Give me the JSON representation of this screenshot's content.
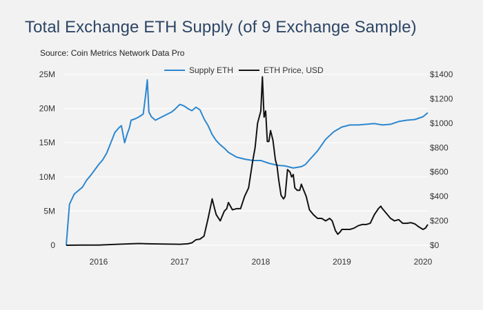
{
  "title": "Total Exchange ETH Supply (of 9 Exchange Sample)",
  "source": "Source: Coin Metrics Network Data Pro",
  "colors": {
    "supply": "#2a86cf",
    "price": "#111111",
    "grid": "#ffffff",
    "background": "#f2f2f2",
    "title": "#2d4565"
  },
  "chart_data": {
    "type": "line",
    "legend_position": "top-center",
    "grid": true,
    "x_ticks": [
      2016,
      2017,
      2018,
      2019,
      2020
    ],
    "xlim": [
      2015.6,
      2020.06
    ],
    "y_left": {
      "ylim": [
        0,
        25000000
      ],
      "ticks": [
        "0",
        "5M",
        "10M",
        "15M",
        "20M",
        "25M"
      ],
      "tick_values": [
        0,
        5000000,
        10000000,
        15000000,
        20000000,
        25000000
      ]
    },
    "y_right": {
      "ylim": [
        0,
        1400
      ],
      "ticks": [
        "$0",
        "$200",
        "$400",
        "$600",
        "$800",
        "$1000",
        "$1200",
        "$1400"
      ],
      "tick_values": [
        0,
        200,
        400,
        600,
        800,
        1000,
        1200,
        1400
      ]
    },
    "series": [
      {
        "name": "Supply ETH",
        "axis": "left",
        "x": [
          2015.6,
          2015.64,
          2015.66,
          2015.7,
          2015.75,
          2015.8,
          2015.85,
          2015.9,
          2015.95,
          2016.0,
          2016.05,
          2016.1,
          2016.15,
          2016.2,
          2016.25,
          2016.28,
          2016.32,
          2016.35,
          2016.38,
          2016.4,
          2016.45,
          2016.5,
          2016.55,
          2016.58,
          2016.6,
          2016.62,
          2016.65,
          2016.7,
          2016.75,
          2016.8,
          2016.85,
          2016.9,
          2016.95,
          2017.0,
          2017.05,
          2017.1,
          2017.15,
          2017.2,
          2017.25,
          2017.3,
          2017.35,
          2017.4,
          2017.45,
          2017.5,
          2017.55,
          2017.6,
          2017.7,
          2017.8,
          2017.9,
          2018.0,
          2018.1,
          2018.2,
          2018.3,
          2018.4,
          2018.5,
          2018.55,
          2018.6,
          2018.7,
          2018.8,
          2018.9,
          2019.0,
          2019.1,
          2019.2,
          2019.3,
          2019.4,
          2019.5,
          2019.6,
          2019.7,
          2019.8,
          2019.9,
          2020.0,
          2020.06
        ],
        "values": [
          0,
          6000000,
          6500000,
          7500000,
          8000000,
          8500000,
          9500000,
          10200000,
          11000000,
          11800000,
          12500000,
          13500000,
          15000000,
          16500000,
          17200000,
          17500000,
          15000000,
          16200000,
          17200000,
          18300000,
          18500000,
          18800000,
          19200000,
          22000000,
          24200000,
          19500000,
          18800000,
          18300000,
          18600000,
          18900000,
          19200000,
          19500000,
          20000000,
          20600000,
          20400000,
          20000000,
          19700000,
          20200000,
          19800000,
          18500000,
          17500000,
          16200000,
          15300000,
          14700000,
          14200000,
          13600000,
          12900000,
          12600000,
          12400000,
          12400000,
          12000000,
          11700000,
          11600000,
          11300000,
          11500000,
          11800000,
          12500000,
          13800000,
          15500000,
          16600000,
          17300000,
          17600000,
          17600000,
          17700000,
          17800000,
          17600000,
          17700000,
          18100000,
          18300000,
          18400000,
          18800000,
          19400000
        ]
      },
      {
        "name": "ETH Price, USD",
        "axis": "right",
        "x": [
          2015.6,
          2015.8,
          2016.0,
          2016.2,
          2016.4,
          2016.5,
          2016.6,
          2016.8,
          2017.0,
          2017.1,
          2017.15,
          2017.2,
          2017.25,
          2017.3,
          2017.35,
          2017.4,
          2017.43,
          2017.45,
          2017.5,
          2017.55,
          2017.58,
          2017.6,
          2017.65,
          2017.7,
          2017.75,
          2017.8,
          2017.85,
          2017.9,
          2017.93,
          2017.96,
          2018.0,
          2018.02,
          2018.04,
          2018.06,
          2018.08,
          2018.1,
          2018.12,
          2018.15,
          2018.18,
          2018.2,
          2018.22,
          2018.25,
          2018.28,
          2018.3,
          2018.33,
          2018.36,
          2018.38,
          2018.4,
          2018.42,
          2018.45,
          2018.48,
          2018.5,
          2018.53,
          2018.56,
          2018.6,
          2018.65,
          2018.7,
          2018.75,
          2018.8,
          2018.85,
          2018.88,
          2018.92,
          2018.95,
          2018.98,
          2019.0,
          2019.05,
          2019.1,
          2019.15,
          2019.2,
          2019.25,
          2019.3,
          2019.35,
          2019.4,
          2019.45,
          2019.48,
          2019.5,
          2019.55,
          2019.6,
          2019.65,
          2019.7,
          2019.75,
          2019.8,
          2019.85,
          2019.9,
          2019.95,
          2020.0,
          2020.03,
          2020.06
        ],
        "values": [
          0,
          1,
          1,
          7,
          12,
          14,
          12,
          10,
          8,
          12,
          20,
          45,
          50,
          75,
          220,
          380,
          300,
          250,
          200,
          280,
          300,
          350,
          290,
          300,
          300,
          400,
          470,
          690,
          800,
          1000,
          1100,
          1380,
          1050,
          1100,
          850,
          850,
          940,
          860,
          700,
          650,
          540,
          410,
          380,
          400,
          620,
          600,
          560,
          580,
          470,
          450,
          450,
          500,
          450,
          400,
          290,
          250,
          220,
          220,
          200,
          220,
          200,
          120,
          90,
          110,
          130,
          130,
          130,
          140,
          160,
          170,
          170,
          180,
          250,
          300,
          320,
          300,
          260,
          220,
          200,
          210,
          180,
          180,
          185,
          175,
          150,
          130,
          140,
          170
        ]
      }
    ]
  }
}
